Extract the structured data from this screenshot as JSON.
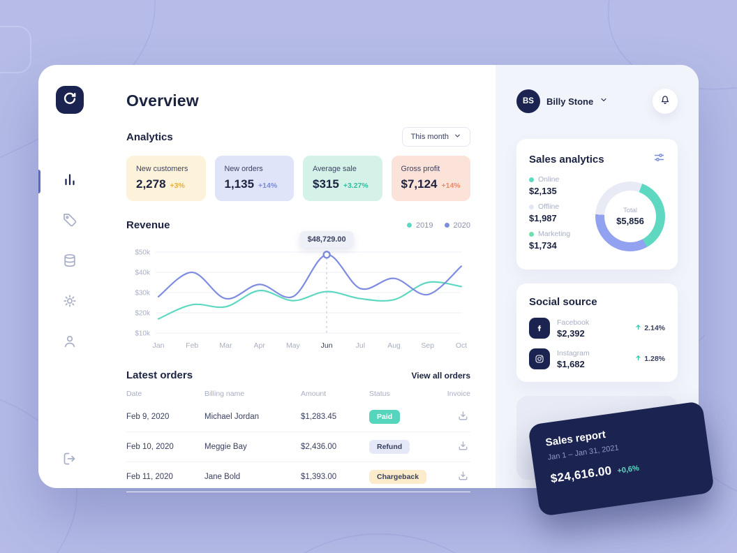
{
  "header": {
    "page_title": "Overview",
    "user_initials": "BS",
    "user_name": "Billy Stone"
  },
  "sidebar": {
    "items": [
      {
        "icon": "bar-chart",
        "active": true
      },
      {
        "icon": "tag",
        "active": false
      },
      {
        "icon": "database",
        "active": false
      },
      {
        "icon": "gear",
        "active": false
      },
      {
        "icon": "user",
        "active": false
      }
    ],
    "bottom": {
      "icon": "logout"
    }
  },
  "analytics": {
    "heading": "Analytics",
    "period_selector": "This month",
    "cards": [
      {
        "label": "New customers",
        "value": "2,278",
        "delta": "+3%",
        "bg": "#fdf3da",
        "delta_color": "#e0b23e"
      },
      {
        "label": "New orders",
        "value": "1,135",
        "delta": "+14%",
        "bg": "#dfe4f9",
        "delta_color": "#7b8bd9"
      },
      {
        "label": "Average sale",
        "value": "$315",
        "delta": "+3.27%",
        "bg": "#d5f2e9",
        "delta_color": "#2fbf9f"
      },
      {
        "label": "Gross profit",
        "value": "$7,124",
        "delta": "+14%",
        "bg": "#fce3da",
        "delta_color": "#ec8a68"
      }
    ]
  },
  "revenue": {
    "heading": "Revenue",
    "tooltip": "$48,729.00"
  },
  "chart_data": {
    "type": "line",
    "title": "Revenue",
    "categories": [
      "Jan",
      "Feb",
      "Mar",
      "Apr",
      "May",
      "Jun",
      "Jul",
      "Aug",
      "Sep",
      "Oct"
    ],
    "series": [
      {
        "name": "2019",
        "color": "#5fd8c2",
        "values": [
          17,
          24,
          23,
          31,
          26,
          30.5,
          27,
          26.5,
          35,
          33
        ]
      },
      {
        "name": "2020",
        "color": "#7e8ce0",
        "values": [
          28,
          40,
          27,
          34,
          28,
          48.7,
          32,
          37,
          29,
          43
        ]
      }
    ],
    "unit": "thousand USD",
    "ylim": [
      10,
      50
    ],
    "yticks": [
      50,
      40,
      30,
      20,
      10
    ],
    "ytick_suffix": "k",
    "highlight_index": 5,
    "highlight_label": "$48,729.00",
    "grid": "horizontal",
    "legend_position": "top-right"
  },
  "orders": {
    "heading": "Latest orders",
    "view_all": "View all orders",
    "columns": [
      "Date",
      "Billing name",
      "Amount",
      "Status",
      "Invoice"
    ],
    "rows": [
      {
        "date": "Feb 9, 2020",
        "name": "Michael Jordan",
        "amount": "$1,283.45",
        "status": "Paid"
      },
      {
        "date": "Feb 10, 2020",
        "name": "Meggie Bay",
        "amount": "$2,436.00",
        "status": "Refund"
      },
      {
        "date": "Feb 11, 2020",
        "name": "Jane Bold",
        "amount": "$1,393.00",
        "status": "Chargeback"
      }
    ],
    "status_styles": {
      "Paid": {
        "bg": "#55d5bc",
        "fg": "#ffffff"
      },
      "Refund": {
        "bg": "#e4e8f7",
        "fg": "#39405e"
      },
      "Chargeback": {
        "bg": "#fceccb",
        "fg": "#39405e"
      }
    }
  },
  "sales_analytics": {
    "heading": "Sales analytics",
    "items": [
      {
        "label": "Online",
        "value": "$2,135",
        "color": "#5fd8c2"
      },
      {
        "label": "Offline",
        "value": "$1,987",
        "color": "#e2e7f3"
      },
      {
        "label": "Marketing",
        "value": "$1,734",
        "color": "#6fdfae"
      }
    ],
    "donut": [
      {
        "color": "#5fd8c2",
        "value": 2135
      },
      {
        "color": "#93a1f1",
        "value": 1987
      },
      {
        "color": "#e8ebf6",
        "value": 1734
      }
    ],
    "total_label": "Total",
    "total_value": "$5,856"
  },
  "social_source": {
    "heading": "Social source",
    "items": [
      {
        "label": "Facebook",
        "value": "$2,392",
        "delta": "2.14%",
        "icon": "facebook"
      },
      {
        "label": "Instagram",
        "value": "$1,682",
        "delta": "1.28%",
        "icon": "instagram"
      }
    ],
    "delta_color": "#2fbf9f"
  },
  "sales_report": {
    "title": "Sales report",
    "period": "Jan 1 – Jan 31, 2021",
    "value": "$24,616.00",
    "delta": "+0,6%",
    "menu_dots": "•••"
  }
}
